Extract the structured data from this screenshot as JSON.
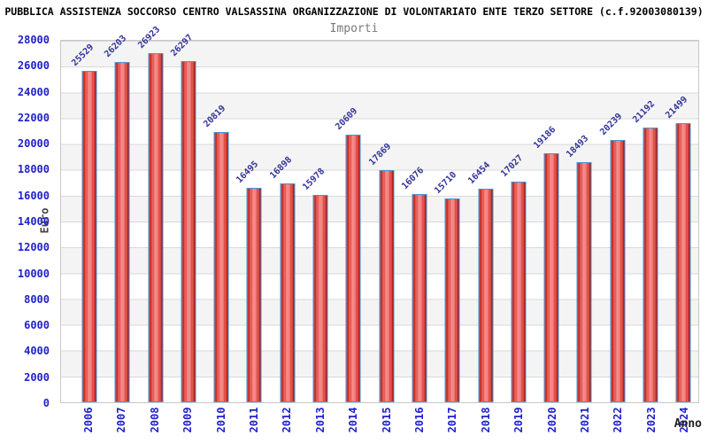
{
  "header": {
    "title": "PUBBLICA ASSISTENZA SOCCORSO CENTRO VALSASSINA ORGANIZZAZIONE DI VOLONTARIATO ENTE TERZO SETTORE (c.f.92003080139)",
    "subtitle": "Importi"
  },
  "chart_data": {
    "type": "bar",
    "title": "Importi",
    "xlabel": "Anno",
    "ylabel": "Euro",
    "categories": [
      "2006",
      "2007",
      "2008",
      "2009",
      "2010",
      "2011",
      "2012",
      "2013",
      "2014",
      "2015",
      "2016",
      "2017",
      "2018",
      "2019",
      "2020",
      "2021",
      "2022",
      "2023",
      "2024"
    ],
    "values": [
      25529,
      26203,
      26923,
      26297,
      20819,
      16495,
      16898,
      15978,
      20609,
      17869,
      16076,
      15710,
      16454,
      17027,
      19186,
      18493,
      20239,
      21192,
      21499
    ],
    "ylim": [
      0,
      28000
    ],
    "yticks": [
      0,
      2000,
      4000,
      6000,
      8000,
      10000,
      12000,
      14000,
      16000,
      18000,
      20000,
      22000,
      24000,
      26000,
      28000
    ],
    "grid": true,
    "legend": null,
    "value_labels_rotation_deg": -45,
    "x_tick_rotation_deg": -90,
    "colors": {
      "title_color": "#000000",
      "subtitle_color": "#7a7a7a",
      "axis_label_color": "#2020cc",
      "value_label_color": "#333399",
      "axis_title_color": "#444444",
      "bar_fill": "#e03a30",
      "bar_fill_dark": "#9e1515",
      "bar_fill_light": "#f58a8a",
      "bar_border": "#4a93d6",
      "band_color": "#f4f4f4",
      "grid_color": "#d9d9d9"
    }
  }
}
